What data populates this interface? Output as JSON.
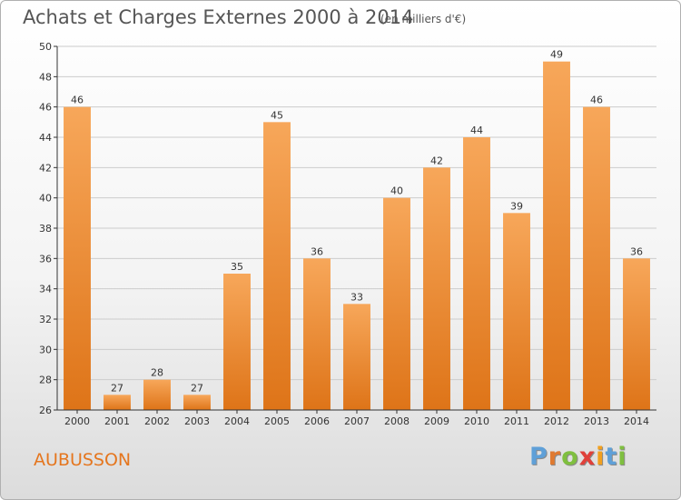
{
  "title": "Achats et Charges Externes 2000 à 2014",
  "unit_note": "(en milliers d'€)",
  "town": "AUBUSSON",
  "logo": {
    "letters": [
      "P",
      "r",
      "o",
      "x",
      "i",
      "t",
      "i"
    ]
  },
  "colors": {
    "bar_light": "#f7a75a",
    "bar_dark": "#de7418",
    "town": "#e5761e",
    "grid": "#cccccc",
    "logo_letters": [
      "#5fa0d8",
      "#e07a30",
      "#7fbf3f",
      "#e0403a",
      "#f2a01e",
      "#5fa0d8",
      "#7fbf3f"
    ]
  },
  "chart_data": {
    "type": "bar",
    "title": "Achats et Charges Externes 2000 à 2014",
    "categories": [
      "2000",
      "2001",
      "2002",
      "2003",
      "2004",
      "2005",
      "2006",
      "2007",
      "2008",
      "2009",
      "2010",
      "2011",
      "2012",
      "2013",
      "2014"
    ],
    "values": [
      46,
      27,
      28,
      27,
      35,
      45,
      36,
      33,
      40,
      42,
      44,
      39,
      49,
      46,
      36
    ],
    "ylim": [
      26,
      50
    ],
    "yticks": [
      26,
      28,
      30,
      32,
      34,
      36,
      38,
      40,
      42,
      44,
      46,
      48,
      50
    ],
    "grid": true,
    "data_labels": true,
    "xlabel": "",
    "ylabel": ""
  }
}
